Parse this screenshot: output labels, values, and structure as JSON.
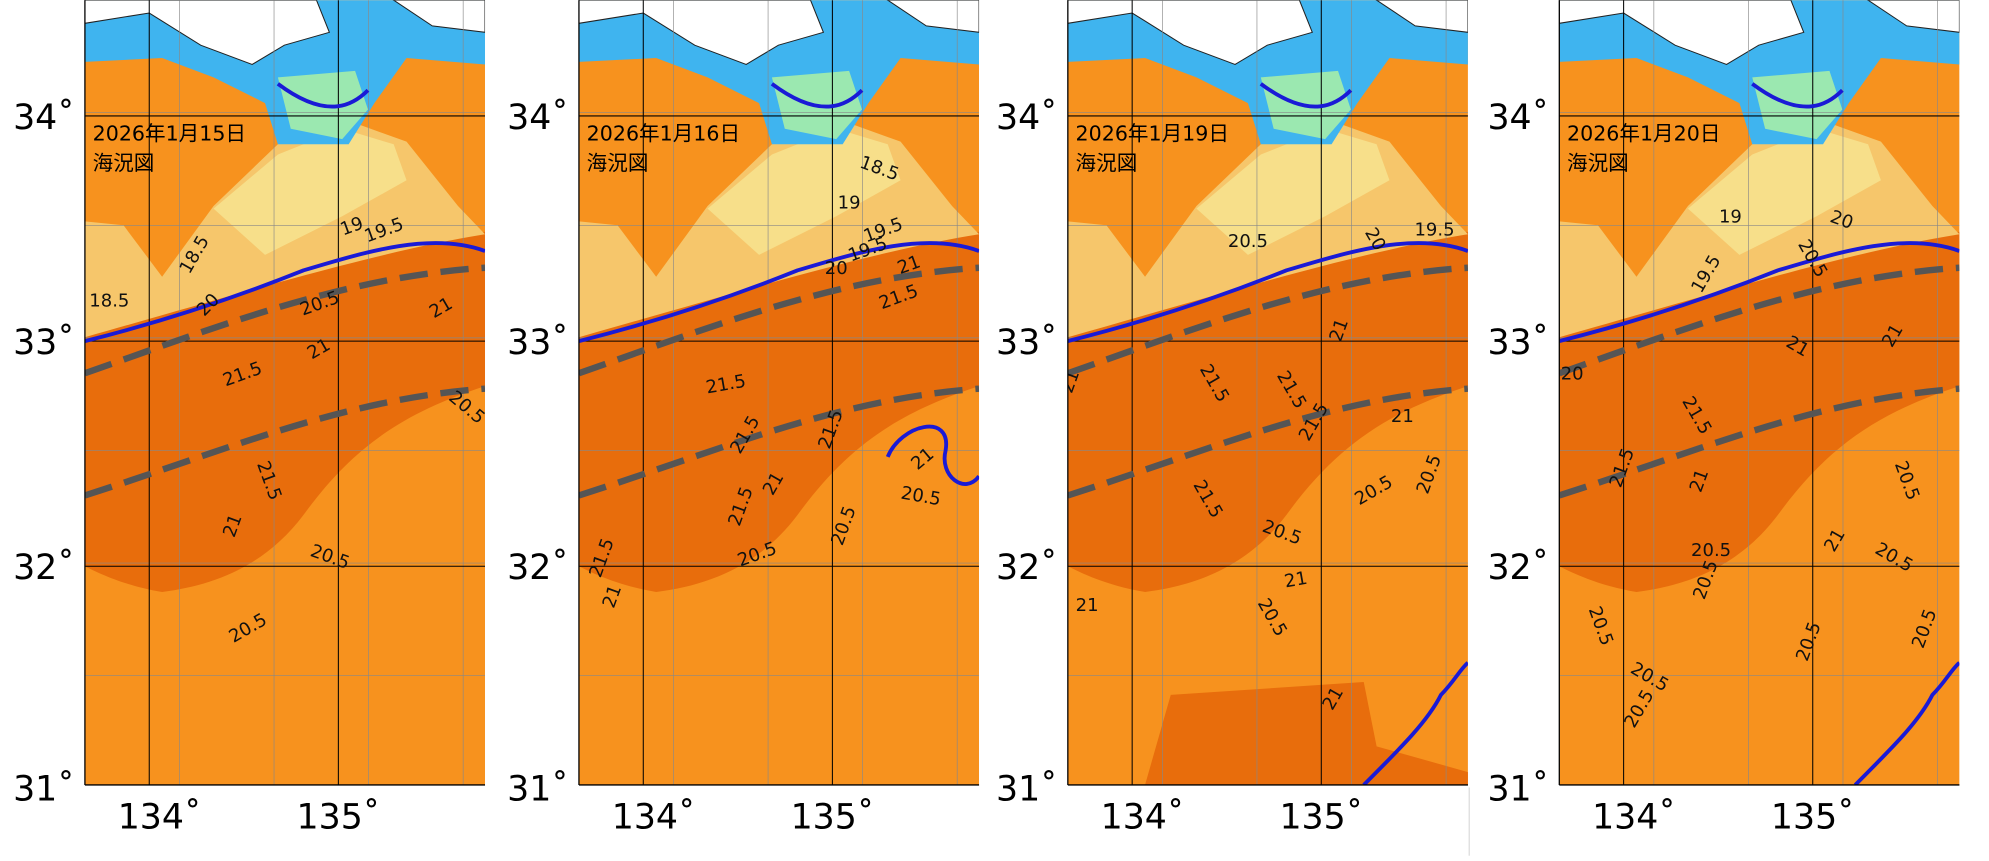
{
  "panels": [
    {
      "date": "2026年1月15日",
      "title": "海況図",
      "lat_labels": [
        "34˚",
        "33˚",
        "32˚",
        "31˚"
      ],
      "lon_labels": [
        "134˚",
        "135˚"
      ],
      "contour_labels": [
        "18.5",
        "18.5",
        "20",
        "19",
        "19.5",
        "20.5",
        "21",
        "21",
        "21.5",
        "20.5",
        "21.5",
        "21",
        "20.5",
        "20.5"
      ]
    },
    {
      "date": "2026年1月16日",
      "title": "海況図",
      "lat_labels": [
        "34˚",
        "33˚",
        "32˚",
        "31˚"
      ],
      "lon_labels": [
        "134˚",
        "135˚"
      ],
      "contour_labels": [
        "18.5",
        "19",
        "19.5",
        "20",
        "19.5",
        "21",
        "21.5",
        "21.5",
        "21.5",
        "21.5",
        "21",
        "21.5",
        "20.5",
        "20.5",
        "21",
        "20.5",
        "21.5",
        "21"
      ]
    },
    {
      "date": "2026年1月19日",
      "title": "海況図",
      "lat_labels": [
        "34˚",
        "33˚",
        "32˚",
        "31˚"
      ],
      "lon_labels": [
        "134˚",
        "135˚"
      ],
      "contour_labels": [
        "20.5",
        "20",
        "19.5",
        "21",
        "21.5",
        "21.5",
        "21.5",
        "21",
        "21.5",
        "20.5",
        "20.5",
        "20.5",
        "21",
        "20.5",
        "21",
        "21",
        "21"
      ]
    },
    {
      "date": "2026年1月20日",
      "title": "海況図",
      "lat_labels": [
        "34˚",
        "33˚",
        "32˚",
        "31˚"
      ],
      "lon_labels": [
        "134˚",
        "135˚"
      ],
      "contour_labels": [
        "19",
        "20",
        "20.5",
        "19.5",
        "21",
        "21",
        "21.5",
        "21",
        "21.5",
        "21",
        "20.5",
        "20.5",
        "20.5",
        "20.5",
        "20.5",
        "20.5",
        "20.5",
        "20.5",
        "20.5",
        "20"
      ]
    }
  ]
}
